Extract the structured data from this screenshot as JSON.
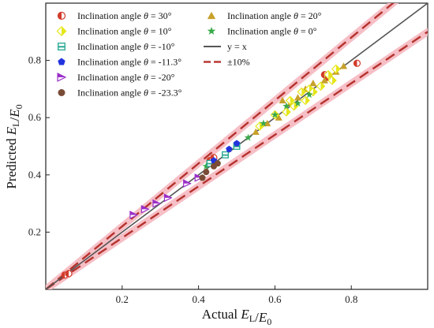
{
  "chart_data": {
    "type": "scatter",
    "xlabel": "Actual E_L/E_0",
    "ylabel": "Predicted E_L/E_0",
    "xlim": [
      0,
      1.0
    ],
    "ylim": [
      0,
      1.0
    ],
    "xticks": [
      0.2,
      0.4,
      0.6,
      0.8
    ],
    "yticks": [
      0.2,
      0.4,
      0.6,
      0.8
    ],
    "grid": false,
    "legend_position": "top-left, two columns",
    "lines": [
      {
        "name": "y = x",
        "slope": 1.0,
        "color": "#555555",
        "style": "solid"
      },
      {
        "name": "±10%",
        "slopes": [
          1.1,
          0.9
        ],
        "color": "#b5332e",
        "style": "dashed",
        "halo": "#f6bfc6"
      }
    ],
    "series": [
      {
        "name": "Inclination angle θ = 30°",
        "marker": "half-circle",
        "color": "#d23b2a",
        "points": [
          [
            0.05,
            0.05
          ],
          [
            0.06,
            0.055
          ],
          [
            0.43,
            0.45
          ],
          [
            0.44,
            0.46
          ],
          [
            0.73,
            0.75
          ],
          [
            0.74,
            0.74
          ],
          [
            0.815,
            0.79
          ]
        ]
      },
      {
        "name": "Inclination angle θ = 20°",
        "marker": "triangle-up",
        "color": "#c8a12b",
        "points": [
          [
            0.55,
            0.55
          ],
          [
            0.58,
            0.58
          ],
          [
            0.61,
            0.6
          ],
          [
            0.62,
            0.66
          ],
          [
            0.64,
            0.65
          ],
          [
            0.66,
            0.67
          ],
          [
            0.68,
            0.7
          ],
          [
            0.7,
            0.72
          ],
          [
            0.73,
            0.73
          ],
          [
            0.76,
            0.76
          ],
          [
            0.78,
            0.78
          ]
        ]
      },
      {
        "name": "Inclination angle θ = 10°",
        "marker": "diamond-half",
        "color": "#e6e61a",
        "points": [
          [
            0.56,
            0.57
          ],
          [
            0.6,
            0.61
          ],
          [
            0.63,
            0.62
          ],
          [
            0.64,
            0.66
          ],
          [
            0.65,
            0.64
          ],
          [
            0.67,
            0.69
          ],
          [
            0.68,
            0.66
          ],
          [
            0.69,
            0.7
          ],
          [
            0.7,
            0.69
          ],
          [
            0.72,
            0.71
          ],
          [
            0.74,
            0.75
          ],
          [
            0.75,
            0.73
          ],
          [
            0.76,
            0.77
          ]
        ]
      },
      {
        "name": "Inclination angle θ = 0°",
        "marker": "star",
        "color": "#3aa94a",
        "points": [
          [
            0.41,
            0.39
          ],
          [
            0.42,
            0.43
          ],
          [
            0.45,
            0.44
          ],
          [
            0.5,
            0.5
          ],
          [
            0.53,
            0.53
          ],
          [
            0.57,
            0.58
          ],
          [
            0.6,
            0.61
          ],
          [
            0.63,
            0.64
          ],
          [
            0.66,
            0.65
          ],
          [
            0.69,
            0.68
          ]
        ]
      },
      {
        "name": "Inclination angle θ = -10°",
        "marker": "square-half",
        "color": "#22a58f",
        "points": [
          [
            0.43,
            0.44
          ],
          [
            0.47,
            0.47
          ],
          [
            0.5,
            0.5
          ]
        ]
      },
      {
        "name": "Inclination angle θ = -11.3°",
        "marker": "pentagon",
        "color": "#2233dd",
        "points": [
          [
            0.44,
            0.45
          ],
          [
            0.48,
            0.49
          ],
          [
            0.5,
            0.51
          ]
        ]
      },
      {
        "name": "Inclination angle θ = -20°",
        "marker": "triangle-right",
        "color": "#9b2fc9",
        "points": [
          [
            0.23,
            0.26
          ],
          [
            0.26,
            0.28
          ],
          [
            0.29,
            0.3
          ],
          [
            0.32,
            0.32
          ],
          [
            0.37,
            0.37
          ],
          [
            0.4,
            0.39
          ]
        ]
      },
      {
        "name": "Inclination angle θ = -23.3°",
        "marker": "circle",
        "color": "#7a4b36",
        "points": [
          [
            0.41,
            0.39
          ],
          [
            0.42,
            0.41
          ],
          [
            0.44,
            0.43
          ],
          [
            0.45,
            0.44
          ]
        ]
      }
    ]
  }
}
